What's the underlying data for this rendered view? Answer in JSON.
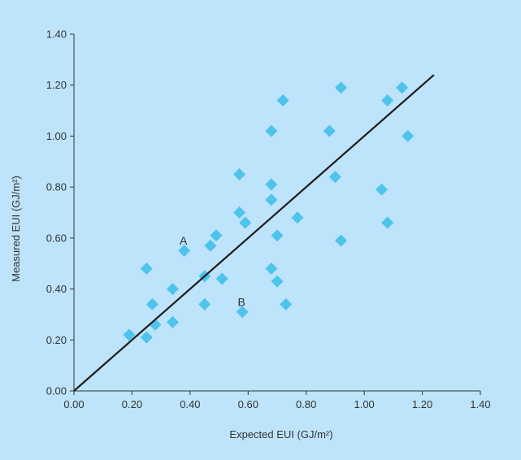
{
  "chart_data": {
    "type": "scatter",
    "xlabel": "Expected EUI  (GJ/m²)",
    "ylabel": "Measured EUI (GJ/m²)",
    "xlim": [
      0,
      1.4
    ],
    "ylim": [
      0,
      1.4
    ],
    "x_ticks": [
      "0.00",
      "0.20",
      "0.40",
      "0.60",
      "0.80",
      "1.00",
      "1.20",
      "1.40"
    ],
    "y_ticks": [
      "0.00",
      "0.20",
      "0.40",
      "0.60",
      "0.80",
      "1.00",
      "1.20",
      "1.40"
    ],
    "grid": false,
    "legend": "none",
    "marker_color": "#4ec3ec",
    "line_color": "#1e1e1e",
    "points": [
      {
        "x": 0.19,
        "y": 0.22
      },
      {
        "x": 0.25,
        "y": 0.21
      },
      {
        "x": 0.25,
        "y": 0.48
      },
      {
        "x": 0.27,
        "y": 0.34
      },
      {
        "x": 0.28,
        "y": 0.26
      },
      {
        "x": 0.34,
        "y": 0.27
      },
      {
        "x": 0.34,
        "y": 0.4
      },
      {
        "x": 0.38,
        "y": 0.55
      },
      {
        "x": 0.45,
        "y": 0.45
      },
      {
        "x": 0.45,
        "y": 0.34
      },
      {
        "x": 0.47,
        "y": 0.57
      },
      {
        "x": 0.49,
        "y": 0.61
      },
      {
        "x": 0.51,
        "y": 0.44
      },
      {
        "x": 0.57,
        "y": 0.85
      },
      {
        "x": 0.57,
        "y": 0.7
      },
      {
        "x": 0.58,
        "y": 0.31
      },
      {
        "x": 0.59,
        "y": 0.66
      },
      {
        "x": 0.68,
        "y": 1.02
      },
      {
        "x": 0.68,
        "y": 0.81
      },
      {
        "x": 0.68,
        "y": 0.75
      },
      {
        "x": 0.68,
        "y": 0.48
      },
      {
        "x": 0.7,
        "y": 0.61
      },
      {
        "x": 0.7,
        "y": 0.43
      },
      {
        "x": 0.72,
        "y": 1.14
      },
      {
        "x": 0.73,
        "y": 0.34
      },
      {
        "x": 0.77,
        "y": 0.68
      },
      {
        "x": 0.88,
        "y": 1.02
      },
      {
        "x": 0.9,
        "y": 0.84
      },
      {
        "x": 0.92,
        "y": 1.19
      },
      {
        "x": 0.92,
        "y": 0.59
      },
      {
        "x": 1.06,
        "y": 0.79
      },
      {
        "x": 1.08,
        "y": 1.14
      },
      {
        "x": 1.08,
        "y": 0.66
      },
      {
        "x": 1.13,
        "y": 1.19
      },
      {
        "x": 1.15,
        "y": 1.0
      }
    ],
    "fit_line": [
      {
        "x": 0.0,
        "y": 0.0
      },
      {
        "x": 1.24,
        "y": 1.24
      }
    ],
    "annotations": [
      {
        "text": "A",
        "x": 0.38,
        "y": 0.59
      },
      {
        "text": "B",
        "x": 0.58,
        "y": 0.35
      }
    ]
  }
}
